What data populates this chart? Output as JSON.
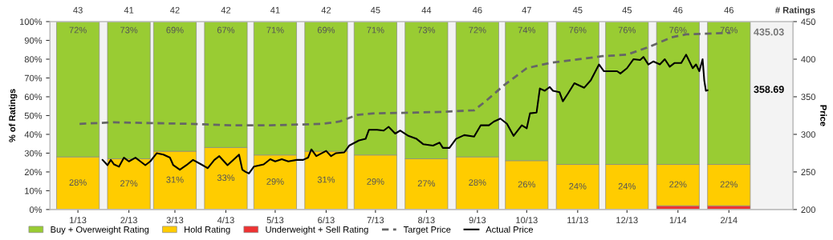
{
  "chart_data": {
    "type": "bar",
    "stacked": true,
    "ylabel": "% of Ratings",
    "y2label": "Price",
    "legend": "bottom",
    "grid": false,
    "x": [
      "2013-01",
      "2013-02",
      "2013-03",
      "2013-04",
      "2013-05",
      "2013-06",
      "2013-07",
      "2013-08",
      "2013-09",
      "2013-10",
      "2013-11",
      "2013-12",
      "2014-01",
      "2014-02"
    ],
    "xlim": [
      "2012-12-15",
      "2014-03-12"
    ],
    "xticks": [
      {
        "value": "2013-01",
        "label": "1/13"
      },
      {
        "value": "2013-02",
        "label": "2/13"
      },
      {
        "value": "2013-03",
        "label": "3/13"
      },
      {
        "value": "2013-04",
        "label": "4/13"
      },
      {
        "value": "2013-05",
        "label": "5/13"
      },
      {
        "value": "2013-06",
        "label": "6/13"
      },
      {
        "value": "2013-07",
        "label": "7/13"
      },
      {
        "value": "2013-08",
        "label": "8/13"
      },
      {
        "value": "2013-09",
        "label": "9/13"
      },
      {
        "value": "2013-10",
        "label": "10/13"
      },
      {
        "value": "2013-11",
        "label": "11/13"
      },
      {
        "value": "2013-12",
        "label": "12/13"
      },
      {
        "value": "2014-01",
        "label": "1/14"
      },
      {
        "value": "2014-02",
        "label": "2/14"
      }
    ],
    "ylim": [
      0,
      100
    ],
    "yticks": [
      {
        "value": 0,
        "label": "0%"
      },
      {
        "value": 10,
        "label": "10%"
      },
      {
        "value": 20,
        "label": "20%"
      },
      {
        "value": 30,
        "label": "30%"
      },
      {
        "value": 40,
        "label": "40%"
      },
      {
        "value": 50,
        "label": "50%"
      },
      {
        "value": 60,
        "label": "60%"
      },
      {
        "value": 70,
        "label": "70%"
      },
      {
        "value": 80,
        "label": "80%"
      },
      {
        "value": 90,
        "label": "90%"
      },
      {
        "value": 100,
        "label": "100%"
      }
    ],
    "y2lim": [
      200,
      450
    ],
    "y2ticks": [
      200,
      250,
      300,
      350,
      400,
      450
    ],
    "series": [
      {
        "name": "Underweight + Sell Rating",
        "color": "#ee3333",
        "values": [
          0,
          0,
          0,
          0,
          0,
          0,
          0,
          0,
          0,
          0,
          0,
          0,
          2,
          2
        ]
      },
      {
        "name": "Hold Rating",
        "color": "#ffcc00",
        "values": [
          28,
          27,
          31,
          33,
          29,
          31,
          29,
          27,
          28,
          26,
          24,
          24,
          22,
          22
        ],
        "value_labels": [
          "28%",
          "27%",
          "31%",
          "33%",
          "29%",
          "31%",
          "29%",
          "27%",
          "28%",
          "26%",
          "24%",
          "24%",
          "22%",
          "22%"
        ]
      },
      {
        "name": "Buy + Overweight Rating",
        "color": "#99cc33",
        "values": [
          72,
          73,
          69,
          67,
          71,
          69,
          71,
          73,
          72,
          74,
          76,
          76,
          76,
          76
        ],
        "value_labels": [
          "72%",
          "73%",
          "69%",
          "67%",
          "71%",
          "69%",
          "71%",
          "73%",
          "72%",
          "74%",
          "76%",
          "76%",
          "76%",
          "76%"
        ]
      },
      {
        "name": "Target Price",
        "type": "line",
        "axis": "y2",
        "color": "#666666",
        "line_style": "dashed",
        "x": [
          "2013-01-02",
          "2013-01-23",
          "2013-02-14",
          "2013-03-11",
          "2013-04-04",
          "2013-04-28",
          "2013-05-30",
          "2013-06-09",
          "2013-06-20",
          "2013-07-01",
          "2013-07-26",
          "2013-08-11",
          "2013-08-30",
          "2013-09-06",
          "2013-09-17",
          "2013-10-01",
          "2013-10-15",
          "2013-11-16",
          "2013-12-01",
          "2013-12-14",
          "2013-12-28",
          "2014-01-06",
          "2014-02-02"
        ],
        "values": [
          314,
          316,
          315,
          314,
          312,
          312,
          314,
          317,
          326,
          328,
          329,
          330,
          332,
          344,
          365,
          388,
          395,
          404,
          406,
          416,
          429,
          433,
          435.03
        ]
      },
      {
        "name": "Actual Price",
        "type": "line",
        "axis": "y2",
        "color": "#000000",
        "line_style": "solid",
        "x": [
          "2013-01-16",
          "2013-01-19",
          "2013-01-21",
          "2013-01-23",
          "2013-01-26",
          "2013-01-29",
          "2013-02-01",
          "2013-02-05",
          "2013-02-08",
          "2013-02-11",
          "2013-02-14",
          "2013-02-18",
          "2013-02-22",
          "2013-02-26",
          "2013-02-28",
          "2013-03-04",
          "2013-03-08",
          "2013-03-12",
          "2013-03-17",
          "2013-03-21",
          "2013-03-25",
          "2013-03-28",
          "2013-04-02",
          "2013-04-06",
          "2013-04-09",
          "2013-04-11",
          "2013-04-13",
          "2013-04-15",
          "2013-04-18",
          "2013-04-24",
          "2013-04-28",
          "2013-05-01",
          "2013-05-05",
          "2013-05-09",
          "2013-05-14",
          "2013-05-18",
          "2013-05-21",
          "2013-05-23",
          "2013-05-26",
          "2013-06-01",
          "2013-06-04",
          "2013-06-07",
          "2013-06-12",
          "2013-06-15",
          "2013-06-21",
          "2013-06-25",
          "2013-06-27",
          "2013-07-02",
          "2013-07-06",
          "2013-07-09",
          "2013-07-13",
          "2013-07-16",
          "2013-07-21",
          "2013-07-26",
          "2013-07-30",
          "2013-08-05",
          "2013-08-09",
          "2013-08-11",
          "2013-08-15",
          "2013-08-19",
          "2013-08-24",
          "2013-08-30",
          "2013-09-03",
          "2013-09-08",
          "2013-09-11",
          "2013-09-15",
          "2013-09-19",
          "2013-09-23",
          "2013-09-28",
          "2013-10-01",
          "2013-10-03",
          "2013-10-07",
          "2013-10-09",
          "2013-10-12",
          "2013-10-15",
          "2013-10-17",
          "2013-10-21",
          "2013-10-23",
          "2013-10-26",
          "2013-10-30",
          "2013-11-05",
          "2013-11-09",
          "2013-11-14",
          "2013-11-17",
          "2013-11-25",
          "2013-11-27",
          "2013-12-01",
          "2013-12-05",
          "2013-12-09",
          "2013-12-11",
          "2013-12-14",
          "2013-12-17",
          "2013-12-21",
          "2013-12-24",
          "2013-12-27",
          "2013-12-30",
          "2014-01-03",
          "2014-01-06",
          "2014-01-10",
          "2014-01-12",
          "2014-01-14",
          "2014-01-16",
          "2014-01-17",
          "2014-01-18",
          "2014-01-19"
        ],
        "values": [
          266,
          259,
          266,
          260,
          257,
          269,
          264,
          269,
          264,
          259,
          264,
          275,
          273,
          269,
          259,
          253,
          259,
          266,
          260,
          255,
          266,
          271,
          259,
          267,
          273,
          253,
          250,
          248,
          257,
          260,
          267,
          264,
          267,
          264,
          266,
          266,
          269,
          280,
          271,
          278,
          271,
          275,
          276,
          285,
          292,
          294,
          306,
          306,
          305,
          310,
          301,
          305,
          298,
          294,
          287,
          285,
          289,
          282,
          282,
          294,
          299,
          297,
          312,
          312,
          317,
          321,
          314,
          298,
          312,
          308,
          328,
          329,
          361,
          358,
          363,
          358,
          356,
          344,
          354,
          368,
          362,
          372,
          393,
          384,
          384,
          381,
          388,
          400,
          399,
          403,
          393,
          397,
          393,
          400,
          390,
          395,
          395,
          406,
          388,
          393,
          384,
          400,
          372,
          358,
          358.69
        ]
      }
    ],
    "annotations": [
      "43",
      "41",
      "42",
      "42",
      "41",
      "42",
      "45",
      "44",
      "46",
      "47",
      "45",
      "45",
      "46",
      "46",
      "# Ratings",
      "435.03",
      "358.69"
    ]
  }
}
